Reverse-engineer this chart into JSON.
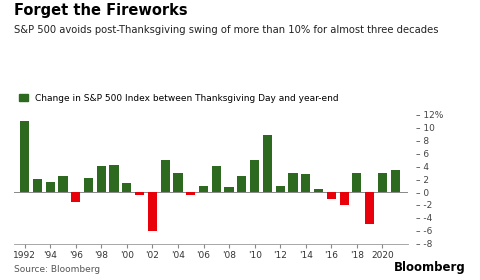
{
  "years": [
    1992,
    1993,
    1994,
    1995,
    1996,
    1997,
    1998,
    1999,
    2000,
    2001,
    2002,
    2003,
    2004,
    2005,
    2006,
    2007,
    2008,
    2009,
    2010,
    2011,
    2012,
    2013,
    2014,
    2015,
    2016,
    2017,
    2018,
    2019,
    2020,
    2021
  ],
  "values": [
    11.0,
    2.0,
    1.5,
    2.5,
    -1.5,
    2.2,
    4.0,
    4.2,
    1.4,
    -0.4,
    -6.0,
    5.0,
    3.0,
    -0.5,
    1.0,
    4.0,
    0.8,
    2.5,
    5.0,
    8.8,
    1.0,
    3.0,
    2.8,
    0.5,
    -1.0,
    -2.0,
    3.0,
    -5.0,
    3.0,
    3.5
  ],
  "title": "Forget the Fireworks",
  "subtitle": "S&P 500 avoids post-Thanksgiving swing of more than 10% for almost three decades",
  "legend_label": "Change in S&P 500 Index between Thanksgiving Day and year-end",
  "source": "Source: Bloomberg",
  "watermark": "Bloomberg",
  "ylim": [
    -8,
    12
  ],
  "yticks": [
    -8,
    -6,
    -4,
    -2,
    0,
    2,
    4,
    6,
    8,
    10,
    12
  ],
  "xtick_labels": [
    "1992",
    "'94",
    "'96",
    "'98",
    "'00",
    "'02",
    "'04",
    "'06",
    "'08",
    "'10",
    "'12",
    "'14",
    "'16",
    "'18",
    "2020"
  ],
  "xtick_positions": [
    1992,
    1994,
    1996,
    1998,
    2000,
    2002,
    2004,
    2006,
    2008,
    2010,
    2012,
    2014,
    2016,
    2018,
    2020
  ],
  "positive_color": "#2d6a1f",
  "negative_color": "#e8000b",
  "background_color": "#ffffff",
  "title_fontsize": 10.5,
  "subtitle_fontsize": 7.2,
  "legend_fontsize": 6.5,
  "source_fontsize": 6.5,
  "watermark_fontsize": 8.5
}
